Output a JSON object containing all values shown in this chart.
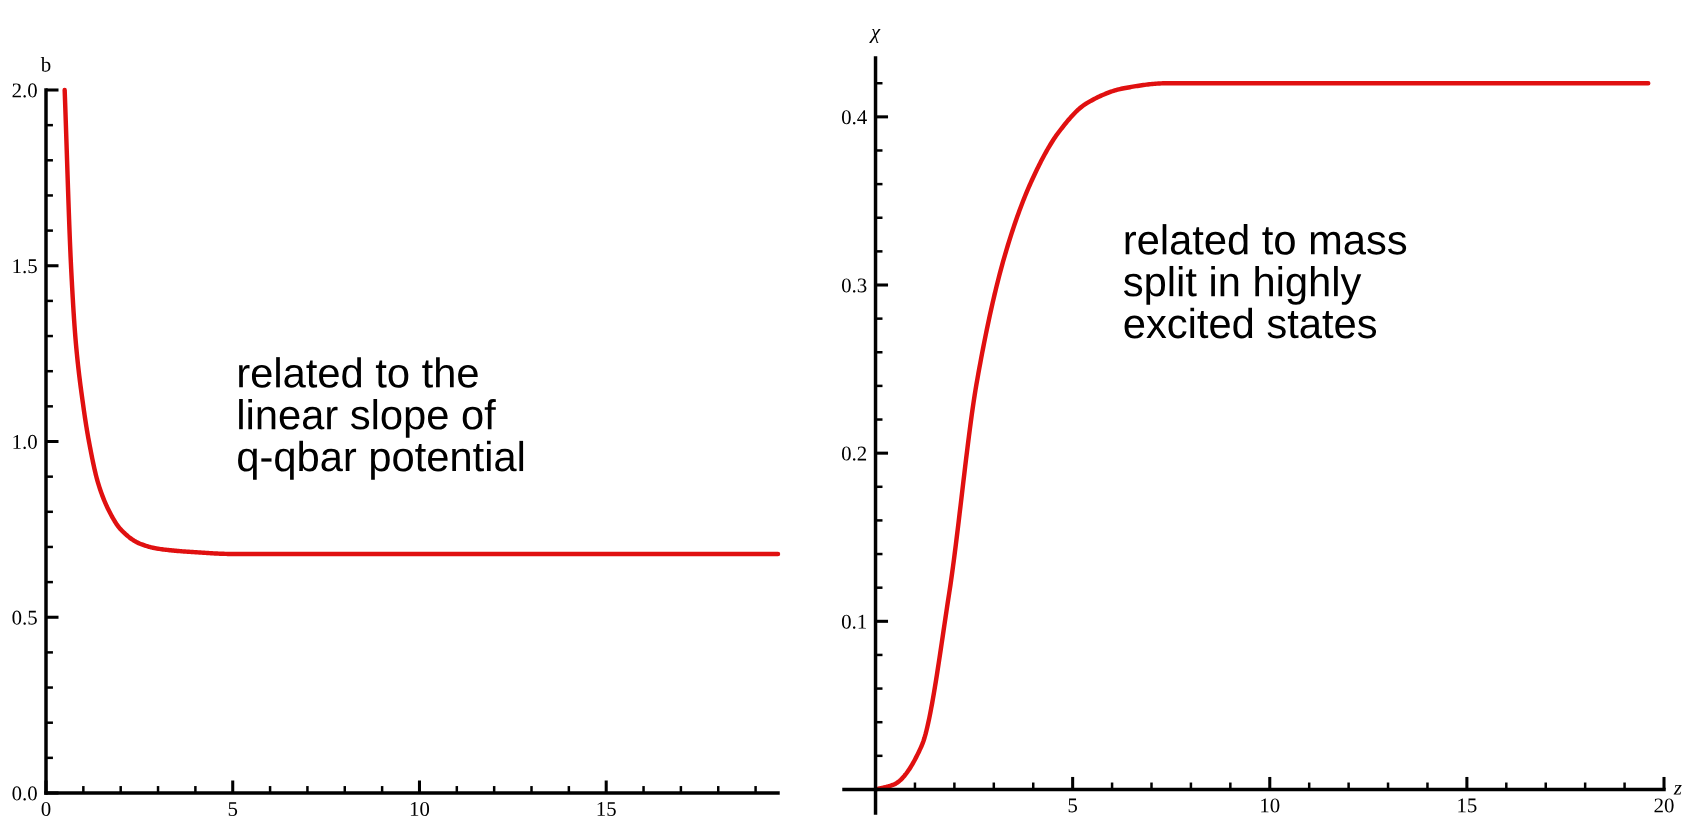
{
  "chart_data": [
    {
      "type": "line",
      "ylabel": "b",
      "annotations": [
        "related to the\nlinear slope of\nq-qbar potential"
      ],
      "x": [
        0.5,
        0.67,
        0.8,
        1.0,
        1.15,
        1.4,
        1.7,
        2.0,
        2.5,
        3.0,
        4.0,
        5.0,
        19.6
      ],
      "series": [
        {
          "color": "#e01010",
          "values": [
            2.0,
            1.5,
            1.28,
            1.1,
            1.0,
            0.88,
            0.8,
            0.75,
            0.71,
            0.695,
            0.685,
            0.68,
            0.68
          ]
        }
      ],
      "xlim": [
        0,
        19.6
      ],
      "ylim": [
        0,
        2.0
      ],
      "xticks": [
        0,
        5,
        10,
        15
      ],
      "yticks": [
        {
          "value": 0,
          "label": "0.0"
        },
        0.5,
        {
          "value": 1,
          "label": "1.0"
        },
        1.5,
        {
          "value": 2,
          "label": "2.0"
        }
      ]
    },
    {
      "type": "line",
      "ylabel": "χ",
      "xlabel": "z",
      "annotations": [
        "related to mass\nsplit in highly\nexcited states"
      ],
      "x": [
        0,
        0.47,
        1.17,
        1.87,
        2.56,
        3.26,
        3.96,
        4.65,
        5.35,
        6.3,
        7.4,
        19.6
      ],
      "series": [
        {
          "color": "#e01010",
          "values": [
            0,
            0.003,
            0.026,
            0.117,
            0.241,
            0.316,
            0.362,
            0.391,
            0.408,
            0.417,
            0.42,
            0.42
          ]
        }
      ],
      "xlim": [
        -0.8,
        20
      ],
      "ylim": [
        -0.014,
        0.435
      ],
      "xticks": [
        5,
        10,
        15,
        20
      ],
      "yticks": [
        {
          "value": 0,
          "label": null
        },
        0.1,
        0.2,
        0.3,
        0.4
      ]
    }
  ]
}
